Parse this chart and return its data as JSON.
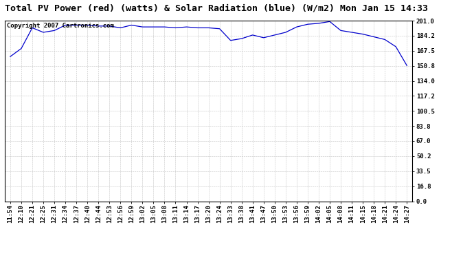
{
  "title": "Total PV Power (red) (watts) & Solar Radiation (blue) (W/m2) Mon Jan 15 14:33",
  "copyright_text": "Copyright 2007 Cartronics.com",
  "line_color": "#0000cc",
  "background_color": "#ffffff",
  "grid_color": "#bbbbbb",
  "yticks": [
    0.0,
    16.8,
    33.5,
    50.2,
    67.0,
    83.8,
    100.5,
    117.2,
    134.0,
    150.8,
    167.5,
    184.2,
    201.0
  ],
  "ylim": [
    0.0,
    201.0
  ],
  "xtick_labels": [
    "11:54",
    "12:10",
    "12:21",
    "12:25",
    "12:31",
    "12:34",
    "12:37",
    "12:40",
    "12:44",
    "12:53",
    "12:56",
    "12:59",
    "13:02",
    "13:05",
    "13:08",
    "13:11",
    "13:14",
    "13:17",
    "13:20",
    "13:24",
    "13:33",
    "13:38",
    "13:41",
    "13:47",
    "13:50",
    "13:53",
    "13:56",
    "13:59",
    "14:02",
    "14:05",
    "14:08",
    "14:11",
    "14:15",
    "14:18",
    "14:21",
    "14:24",
    "14:27"
  ],
  "y_values": [
    161,
    170,
    193,
    188,
    190,
    196,
    196,
    196,
    195,
    195,
    193,
    196,
    194,
    194,
    194,
    193,
    194,
    193,
    193,
    192,
    179,
    181,
    185,
    182,
    185,
    188,
    194,
    197,
    198,
    200,
    190,
    188,
    186,
    183,
    180,
    172,
    151
  ],
  "title_fontsize": 9.5,
  "tick_fontsize": 6.5,
  "copyright_fontsize": 6.5,
  "fig_width": 6.9,
  "fig_height": 3.75,
  "dpi": 100
}
